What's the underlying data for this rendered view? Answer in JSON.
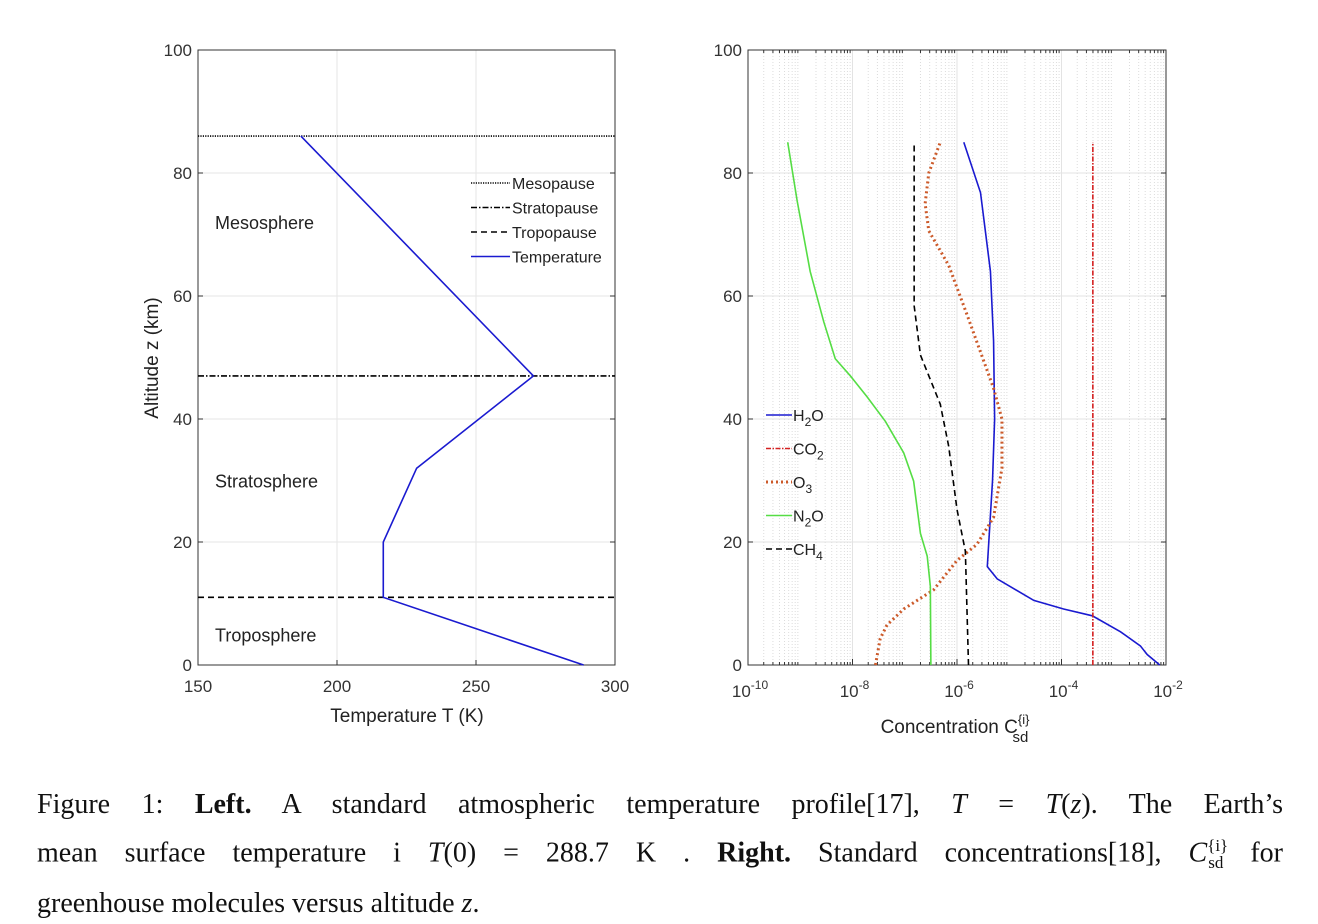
{
  "chart_data": [
    {
      "type": "line",
      "title": "",
      "xlabel": "Temperature T (K)",
      "ylabel": "Altitude z (km)",
      "xlim": [
        150,
        300
      ],
      "ylim": [
        0,
        100
      ],
      "x_ticks": [
        150,
        200,
        250,
        300
      ],
      "y_ticks": [
        0,
        20,
        40,
        60,
        80,
        100
      ],
      "grid": true,
      "legend_position": "top-right",
      "region_labels": [
        {
          "text": "Mesosphere",
          "z": 72
        },
        {
          "text": "Stratosphere",
          "z": 30
        },
        {
          "text": "Troposphere",
          "z": 5
        }
      ],
      "series": [
        {
          "name": "Mesopause",
          "kind": "hline",
          "z": 86,
          "style": "dotted",
          "color": "#000000"
        },
        {
          "name": "Stratopause",
          "kind": "hline",
          "z": 47,
          "style": "dashdot",
          "color": "#000000"
        },
        {
          "name": "Tropopause",
          "kind": "hline",
          "z": 11,
          "style": "dashed",
          "color": "#000000"
        },
        {
          "name": "Temperature",
          "style": "solid",
          "color": "#1a1ad0",
          "x": [
            288.7,
            216.65,
            216.65,
            228.65,
            270.65,
            187
          ],
          "y": [
            0,
            11,
            20,
            32,
            47,
            86
          ]
        }
      ]
    },
    {
      "type": "line",
      "title": "",
      "xlabel": "Concentration C",
      "xlabel_sup": "{i}",
      "xlabel_sub": "sd",
      "ylabel": "",
      "xscale": "log",
      "xlim": [
        1e-10,
        0.01
      ],
      "ylim": [
        0,
        100
      ],
      "x_tick_base": "10",
      "x_tick_exponents": [
        "-10",
        "-8",
        "-6",
        "-4",
        "-2"
      ],
      "y_ticks": [
        0,
        20,
        40,
        60,
        80,
        100
      ],
      "grid": true,
      "minor_grid": true,
      "legend_position": "middle-left",
      "series": [
        {
          "name": "H",
          "sub": "2",
          "tail": "O",
          "style": "solid",
          "color": "#1a1ad0",
          "log10_c": [
            -2.12,
            -2.36,
            -2.49,
            -2.87,
            -3.41,
            -3.96,
            -4.53,
            -5.23,
            -5.42,
            -5.37,
            -5.32,
            -5.28,
            -5.3,
            -5.36,
            -5.55,
            -5.87
          ],
          "z": [
            0,
            1.7,
            3.1,
            5.4,
            8,
            9.1,
            10.5,
            14,
            16,
            23,
            30,
            40,
            52.7,
            64,
            76.8,
            85
          ]
        },
        {
          "name": "CO",
          "sub": "2",
          "tail": "",
          "style": "dashdot",
          "color": "#d42020",
          "log10_c": [
            -3.4,
            -3.4
          ],
          "z": [
            0,
            85
          ]
        },
        {
          "name": "O",
          "sub": "3",
          "tail": "",
          "style": "dotted",
          "color": "#cc5a2a",
          "log10_c": [
            -7.56,
            -7.47,
            -7.34,
            -7.02,
            -6.45,
            -6.0,
            -5.62,
            -5.3,
            -5.14,
            -5.14,
            -5.3,
            -5.81,
            -6.16,
            -6.54,
            -6.61,
            -6.54,
            -6.32
          ],
          "z": [
            0,
            4.3,
            6.5,
            9.1,
            12.2,
            17,
            19.6,
            24,
            32,
            40,
            45,
            57,
            65,
            70.6,
            75,
            80,
            85
          ]
        },
        {
          "name": "N",
          "sub": "2",
          "tail": "O",
          "style": "solid",
          "color": "#55dd44",
          "log10_c": [
            -6.5,
            -6.51,
            -6.57,
            -6.7,
            -6.83,
            -7.02,
            -7.37,
            -7.72,
            -8.04,
            -8.33,
            -8.55,
            -8.81,
            -9.06,
            -9.24
          ],
          "z": [
            0,
            12.8,
            17.7,
            21.4,
            29.9,
            34.5,
            39.6,
            43.6,
            47,
            49.8,
            55.8,
            64,
            75.5,
            85
          ]
        },
        {
          "name": "CH",
          "sub": "4",
          "tail": "",
          "style": "dashed",
          "color": "#000000",
          "log10_c": [
            -5.78,
            -5.84,
            -6.0,
            -6.16,
            -6.32,
            -6.7,
            -6.82,
            -6.82
          ],
          "z": [
            0,
            18.5,
            25.3,
            35.6,
            42.4,
            50.4,
            58.4,
            85
          ]
        }
      ]
    }
  ],
  "caption": {
    "lines": [
      [
        {
          "t": "Figure 1: ",
          "s": ""
        },
        {
          "t": "Left.",
          "s": "b"
        },
        {
          "t": " A standard atmospheric temperature profile[17], ",
          "s": ""
        },
        {
          "t": "T",
          "s": "i"
        },
        {
          "t": " = ",
          "s": ""
        },
        {
          "t": "T",
          "s": "i"
        },
        {
          "t": "(",
          "s": ""
        },
        {
          "t": "z",
          "s": "i"
        },
        {
          "t": "). The Earth’s",
          "s": ""
        }
      ],
      [
        {
          "t": "mean surface temperature i ",
          "s": ""
        },
        {
          "t": "T",
          "s": "i"
        },
        {
          "t": "(0) = 288.7 K . ",
          "s": ""
        },
        {
          "t": "Right.",
          "s": "b"
        },
        {
          "t": " Standard concentrations[18], ",
          "s": ""
        },
        {
          "t": "C",
          "s": "i"
        },
        {
          "t": "{i}",
          "s": "sup"
        },
        {
          "t": "sd",
          "s": "sub"
        },
        {
          "t": " for",
          "s": ""
        }
      ],
      [
        {
          "t": "greenhouse molecules versus altitude ",
          "s": ""
        },
        {
          "t": "z",
          "s": "i"
        },
        {
          "t": ".",
          "s": ""
        }
      ]
    ]
  }
}
